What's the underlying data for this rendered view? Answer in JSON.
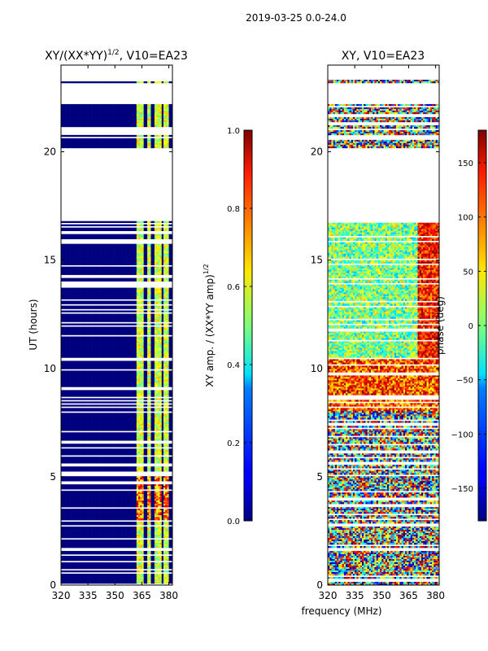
{
  "suptitle": "2019-03-25 0.0-24.0",
  "chart_data": [
    {
      "type": "heatmap",
      "title": "XY/(XX*YY)^1/2, V10=EA23",
      "title_main": "XY/(XX*YY)",
      "title_sup": "1/2",
      "title_rest": ", V10=EA23",
      "xlabel": "",
      "ylabel": "UT (hours)",
      "xlim": [
        320,
        382
      ],
      "ylim": [
        0,
        24
      ],
      "xticks": [
        320,
        335,
        350,
        365,
        380
      ],
      "yticks": [
        0,
        5,
        10,
        15,
        20
      ],
      "colorbar": {
        "label": "XY amp. / (XX*YY amp)^1/2",
        "label_main": "XY amp. / (XX*YY amp)",
        "label_sup": "1/2",
        "range": [
          0.0,
          1.0
        ],
        "ticks": [
          "0.0",
          "0.2",
          "0.4",
          "0.6",
          "0.8",
          "1.0"
        ],
        "tick_values": [
          0.0,
          0.2,
          0.4,
          0.6,
          0.8,
          1.0
        ]
      },
      "colormap": "jet"
    },
    {
      "type": "heatmap",
      "title": "XY, V10=EA23",
      "xlabel": "frequency (MHz)",
      "ylabel": "",
      "xlim": [
        320,
        382
      ],
      "ylim": [
        0,
        24
      ],
      "xticks": [
        320,
        335,
        350,
        365,
        380
      ],
      "yticks": [
        0,
        5,
        10,
        15,
        20
      ],
      "colorbar": {
        "label": "phase (deg)",
        "range": [
          -180,
          180
        ],
        "ticks": [
          "150",
          "100",
          "50",
          "0",
          "−50",
          "−100",
          "−150"
        ],
        "tick_values": [
          150,
          100,
          50,
          0,
          -50,
          -100,
          -150
        ]
      },
      "colormap": "jet"
    }
  ]
}
